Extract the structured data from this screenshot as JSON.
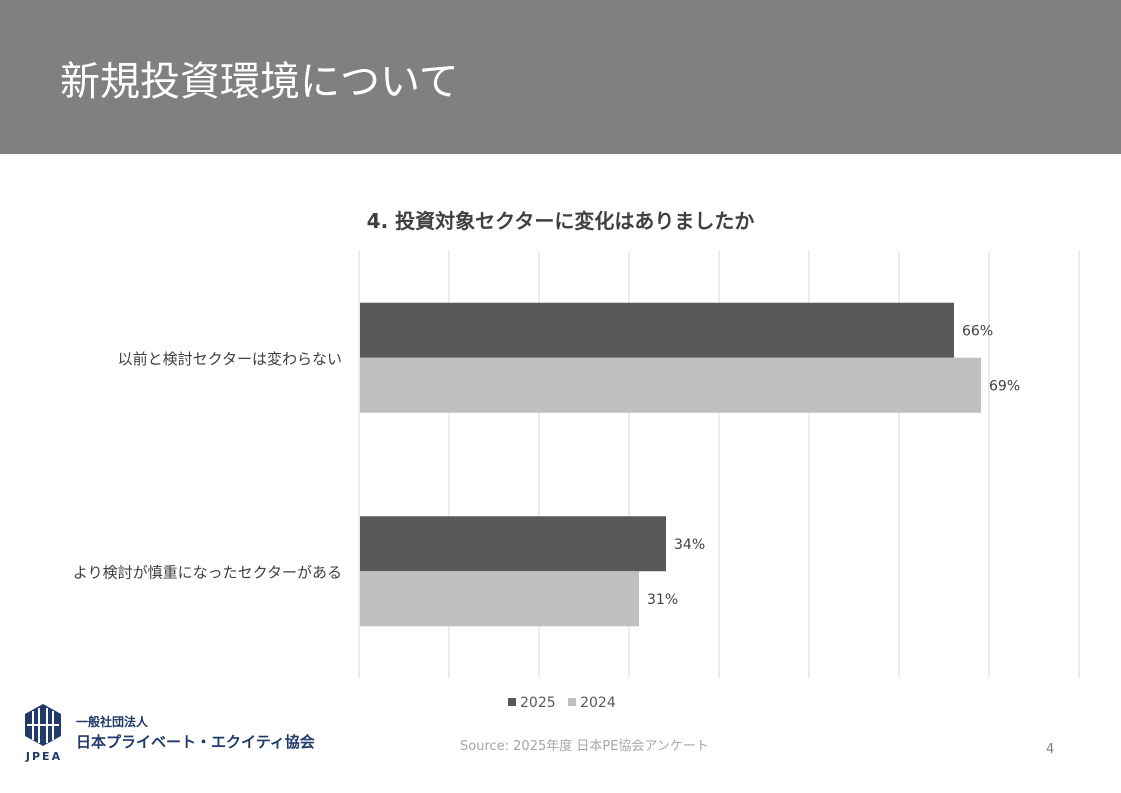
{
  "slide": {
    "title": "新規投資環境について",
    "source": "Source: 2025年度 日本PE協会アンケート",
    "page_number": "4"
  },
  "organization": {
    "logo_text": "JPEA",
    "name_top": "一般社団法人",
    "name_main": "日本プライベート・エクイティ協会"
  },
  "colors": {
    "header_bg": "#808080",
    "series_2025": "#595959",
    "series_2024": "#bfbfbf",
    "logo_blue": "#1f3a6b"
  },
  "chart_data": {
    "type": "bar",
    "orientation": "horizontal",
    "title": "4. 投資対象セクターに変化はありましたか",
    "categories": [
      "以前と検討セクターは変わらない",
      "より検討が慎重になったセクターがある"
    ],
    "series": [
      {
        "name": "2025",
        "values": [
          66,
          34
        ],
        "labels": [
          "66%",
          "34%"
        ],
        "color": "#595959"
      },
      {
        "name": "2024",
        "values": [
          69,
          31
        ],
        "labels": [
          "69%",
          "31%"
        ],
        "color": "#bfbfbf"
      }
    ],
    "xlim": [
      0,
      80
    ],
    "grid": true,
    "legend": "bottom"
  }
}
